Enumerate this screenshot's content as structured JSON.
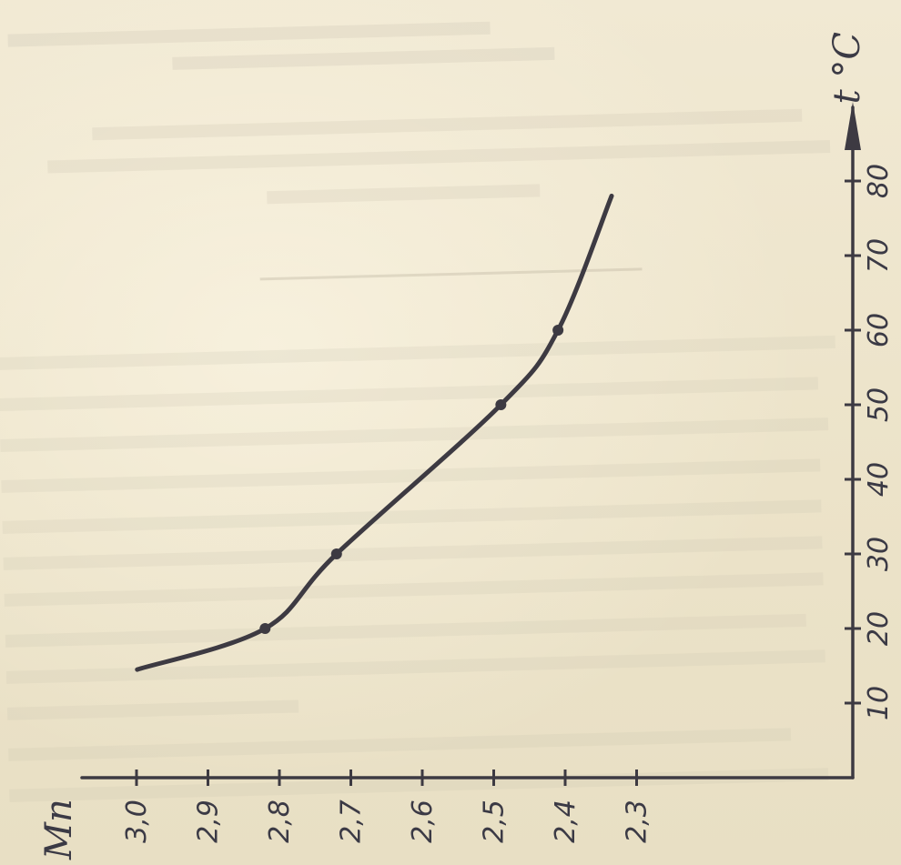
{
  "chart_data": {
    "type": "line",
    "title": "",
    "xlabel": "t °C",
    "ylabel": "Mn",
    "x_ticks": [
      "10",
      "20",
      "30",
      "40",
      "50",
      "60",
      "70",
      "80"
    ],
    "y_ticks": [
      "3,0",
      "2,9",
      "2,8",
      "2,7",
      "2,6",
      "2,5",
      "2,4",
      "2,3"
    ],
    "xlim": [
      0,
      90
    ],
    "ylim": [
      3.0,
      2.25
    ],
    "series": [
      {
        "x": [
          14.5,
          20,
          30,
          50,
          60,
          78
        ],
        "y": [
          2.999,
          2.82,
          2.72,
          2.49,
          2.41,
          2.335
        ]
      }
    ],
    "markers": [
      {
        "x": 20,
        "y": 2.82
      },
      {
        "x": 30,
        "y": 2.72
      },
      {
        "x": 50,
        "y": 2.49
      },
      {
        "x": 60,
        "y": 2.41
      }
    ],
    "grid": false,
    "legend": "none",
    "line_color": "#3d3a42",
    "paper_color": "#efe7cf"
  }
}
